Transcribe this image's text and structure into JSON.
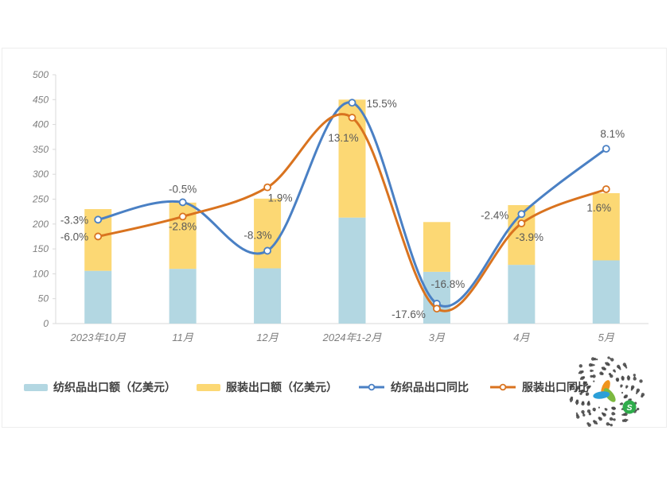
{
  "chart": {
    "panel_border_color": "#ededed",
    "axis_color": "#d9d9d9",
    "tick_text_color": "#7f7f7f",
    "data_label_color": "#595959",
    "background": "#ffffff"
  },
  "chart_data": {
    "type": "bar",
    "subtype": "stacked-bars-with-two-smooth-lines",
    "categories": [
      "2023年10月",
      "11月",
      "12月",
      "2024年1-2月",
      "3月",
      "4月",
      "5月"
    ],
    "bar_series": [
      {
        "name": "纺织品出口额（亿美元）",
        "color": "#b3d7e2",
        "values": [
          106,
          110,
          111,
          213,
          104,
          118,
          127
        ]
      },
      {
        "name": "服装出口额（亿美元）",
        "color": "#fcd874",
        "values": [
          124,
          133,
          140,
          237,
          100,
          120,
          135
        ]
      }
    ],
    "bar_totals": [
      230,
      243,
      251,
      450,
      204,
      238,
      262
    ],
    "line_series": [
      {
        "name": "纺织品出口同比",
        "color": "#4a80c4",
        "values_pct": [
          -3.3,
          -0.5,
          -8.3,
          15.5,
          -16.8,
          -2.4,
          8.1
        ],
        "labels": [
          "-3.3%",
          "-0.5%",
          "-8.3%",
          "15.5%",
          "-16.8%",
          "-2.4%",
          "8.1%"
        ]
      },
      {
        "name": "服装出口同比",
        "color": "#d9731f",
        "values_pct": [
          -6.0,
          -2.8,
          1.9,
          13.1,
          -17.6,
          -3.9,
          1.6
        ],
        "labels": [
          "-6.0%",
          "-2.8%",
          "1.9%",
          "13.1%",
          "-17.6%",
          "-3.9%",
          "1.6%"
        ]
      }
    ],
    "left_axis": {
      "min": 0,
      "max": 500,
      "step": 50,
      "tick_labels": [
        "0",
        "50",
        "100",
        "150",
        "200",
        "250",
        "300",
        "350",
        "400",
        "450",
        "500"
      ]
    },
    "hidden_right_axis": {
      "min_pct": -20,
      "max_pct": 20
    },
    "title": "",
    "xlabel": "",
    "ylabel": "",
    "grid": false,
    "legend_position": "bottom",
    "stacked": true,
    "ylim": [
      0,
      500
    ]
  },
  "legend": {
    "items": [
      {
        "label": "纺织品出口额（亿美元）",
        "type": "bar",
        "color": "#b3d7e2"
      },
      {
        "label": "服装出口额（亿美元）",
        "type": "bar",
        "color": "#fcd874"
      },
      {
        "label": "纺织品出口同比",
        "type": "line",
        "color": "#4a80c4"
      },
      {
        "label": "服装出口同比",
        "type": "line",
        "color": "#d9731f"
      }
    ]
  },
  "qr_logo": {
    "kind": "circular-dotted-miniprogram-code",
    "badge_letter": "S",
    "badge_color": "#2fac4b",
    "dot_color": "#3f3f3f",
    "swirl_colors": [
      "#f0941d",
      "#7cb940",
      "#2b9fd8"
    ]
  }
}
